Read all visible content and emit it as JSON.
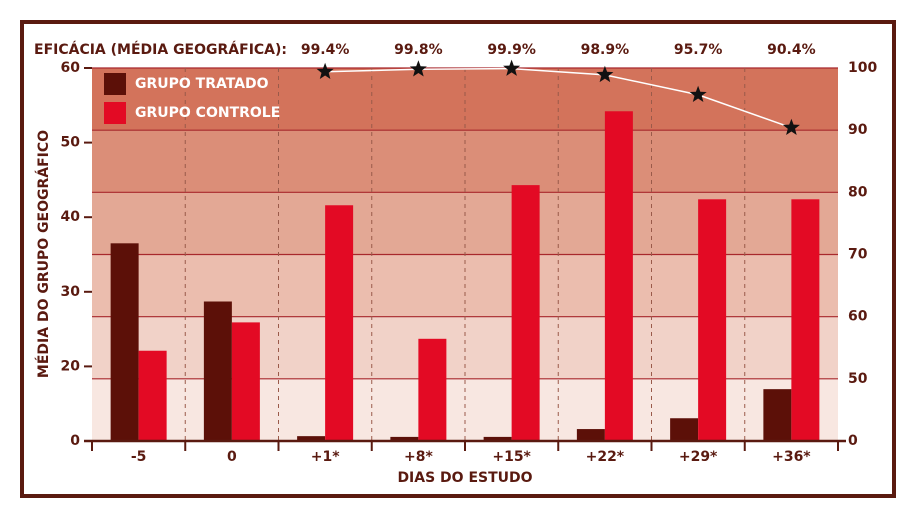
{
  "chart_data": {
    "type": "bar",
    "efficacy_label": "EFICÁCIA (MÉDIA GEOGRÁFICA):",
    "x_label": "DIAS DO ESTUDO",
    "y_label": "MÉDIA DO GRUPO GEOGRÁFICO",
    "categories": [
      "-5",
      "0",
      "+1*",
      "+8*",
      "+15*",
      "+22*",
      "+29*",
      "+36*"
    ],
    "series": [
      {
        "name": "GRUPO TRATADO",
        "color": "#5c1008",
        "values": [
          36.5,
          28.7,
          1.3,
          1.1,
          1.1,
          3.2,
          6.1,
          13.9
        ]
      },
      {
        "name": "GRUPO CONTROLE",
        "color": "#e30a24",
        "values": [
          22.1,
          25.9,
          41.6,
          23.7,
          44.3,
          54.2,
          42.4,
          42.4
        ]
      }
    ],
    "line": {
      "axis": "y2",
      "color": "#ffffff",
      "values": [
        null,
        null,
        99.4,
        99.8,
        99.9,
        98.9,
        95.7,
        90.4
      ],
      "value_labels": [
        null,
        null,
        "99.4%",
        "99.8%",
        "99.9%",
        "98.9%",
        "95.7%",
        "90.4%"
      ]
    },
    "ylim": [
      0,
      60
    ],
    "yticks": [
      0,
      20,
      30,
      40,
      50,
      60
    ],
    "y2lim": [
      0,
      100
    ],
    "y2ticks": [
      0,
      50,
      60,
      70,
      80,
      90,
      100
    ],
    "grid": true
  }
}
